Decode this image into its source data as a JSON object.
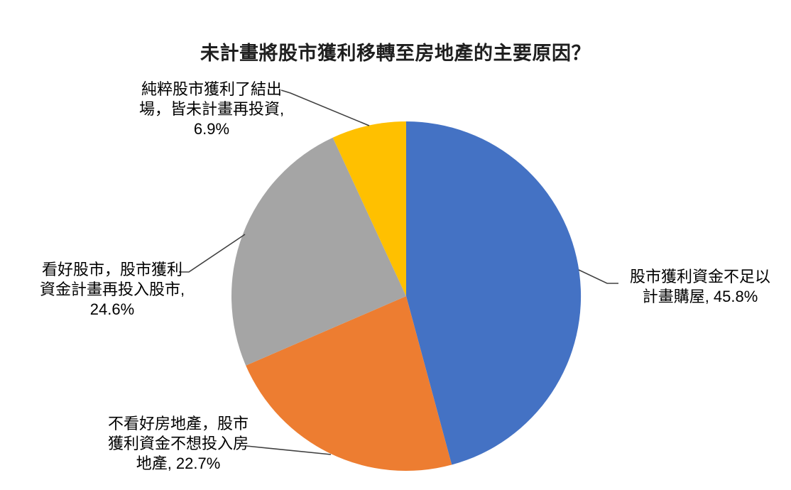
{
  "chart_data": {
    "type": "pie",
    "title": "未計畫將股市獲利移轉至房地產的主要原因？",
    "legend": "none",
    "start_angle_deg": 0,
    "direction": "clockwise",
    "slices": [
      {
        "category": "股市獲利資金不足以計畫購屋",
        "value": 45.8,
        "color": "#4472C4",
        "label_lines": [
          "股市獲利資金不足以",
          "計畫購屋, 45.8%"
        ]
      },
      {
        "category": "不看好房地產，股市獲利資金不想投入房地產",
        "value": 22.7,
        "color": "#ED7D31",
        "label_lines": [
          "不看好房地產，股市",
          "獲利資金不想投入房",
          "地產, 22.7%"
        ]
      },
      {
        "category": "看好股市，股市獲利資金計畫再投入股市",
        "value": 24.6,
        "color": "#A5A5A5",
        "label_lines": [
          "看好股市，股市獲利",
          "資金計畫再投入股市,",
          "24.6%"
        ]
      },
      {
        "category": "純粹股市獲利了結出場，皆未計畫再投資",
        "value": 6.9,
        "color": "#FFC000",
        "label_lines": [
          "純粹股市獲利了結出",
          "場，皆未計畫再投資,",
          "6.9%"
        ]
      }
    ]
  },
  "colors": {
    "background": "#FFFFFF",
    "title_text": "#1F1F1F",
    "label_text": "#000000",
    "leader_line": "#404040"
  }
}
